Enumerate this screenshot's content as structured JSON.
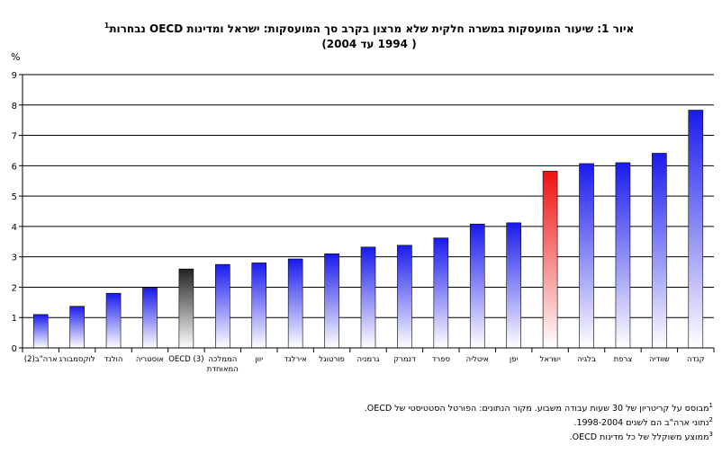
{
  "title_line1": "איור 1: שיעור המועסקות במשרה חלקית שלא מרצון בקרב סך המועסקות: ישראל ומדינות OECD נבחרות",
  "title_sup": "1",
  "title_line2": "( 1994 עד 2004)",
  "chart_data": {
    "type": "bar",
    "ylabel": "%",
    "ylim": [
      0,
      9
    ],
    "yticks": [
      0,
      1,
      2,
      3,
      4,
      5,
      6,
      7,
      8,
      9
    ],
    "grid": true,
    "categories": [
      "ארה\"ב(2)",
      "לוקסמבורג",
      "הולנד",
      "אוסטריה",
      "(3) OECD",
      "הממלכה המאוחדת",
      "יוון",
      "אירלנד",
      "פורטוגל",
      "גרמניה",
      "דנמרק",
      "ספרד",
      "איטליה",
      "יפן",
      "ישראל",
      "בלגיה",
      "צרפת",
      "שוודיה",
      "קנדה"
    ],
    "values": [
      1.1,
      1.37,
      1.8,
      1.97,
      2.6,
      2.75,
      2.8,
      2.93,
      3.1,
      3.32,
      3.38,
      3.62,
      4.08,
      4.12,
      5.82,
      6.07,
      6.1,
      6.41,
      7.83
    ],
    "highlight": {
      "ישראל": "#ee1111",
      "(3) OECD": "#222222"
    },
    "default_color": "#1a1aee"
  },
  "footnotes": [
    {
      "sup": "1",
      "text": "מבוסס על קריטריון של 30 שעות עבודה משבוע. מקור הנתונים: הפורטל הסטטיסטי של OECD."
    },
    {
      "sup": "2",
      "text": "נתוני ארה\"ב הם לשנים 1998-2004."
    },
    {
      "sup": "3",
      "text": "ממוצע משוקלל של כל מדינות OECD."
    }
  ]
}
